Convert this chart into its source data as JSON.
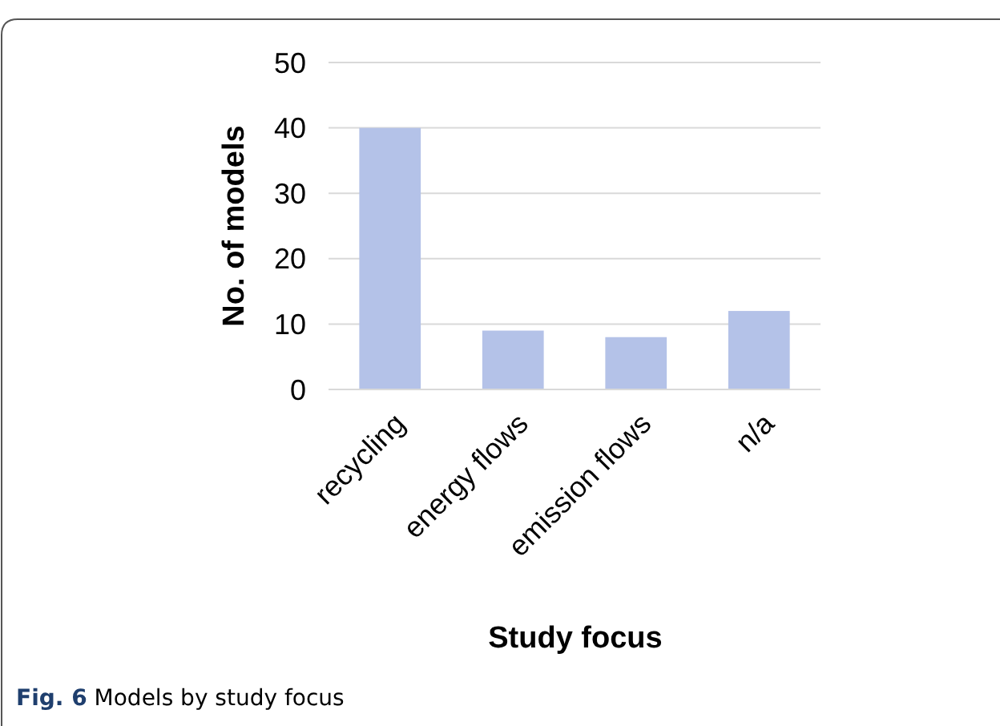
{
  "chart_data": {
    "type": "bar",
    "xlabel": "Study focus",
    "ylabel": "No. of models",
    "categories": [
      "recycling",
      "energy flows",
      "emission flows",
      "n/a"
    ],
    "values": [
      40,
      9,
      8,
      12
    ],
    "color": "#b4c2e8",
    "ylim": [
      0,
      50
    ],
    "yticks": [
      0,
      10,
      20,
      30,
      40,
      50
    ],
    "grid": "y",
    "annotations": [
      "Fig. 6 Models by study focus"
    ]
  }
}
